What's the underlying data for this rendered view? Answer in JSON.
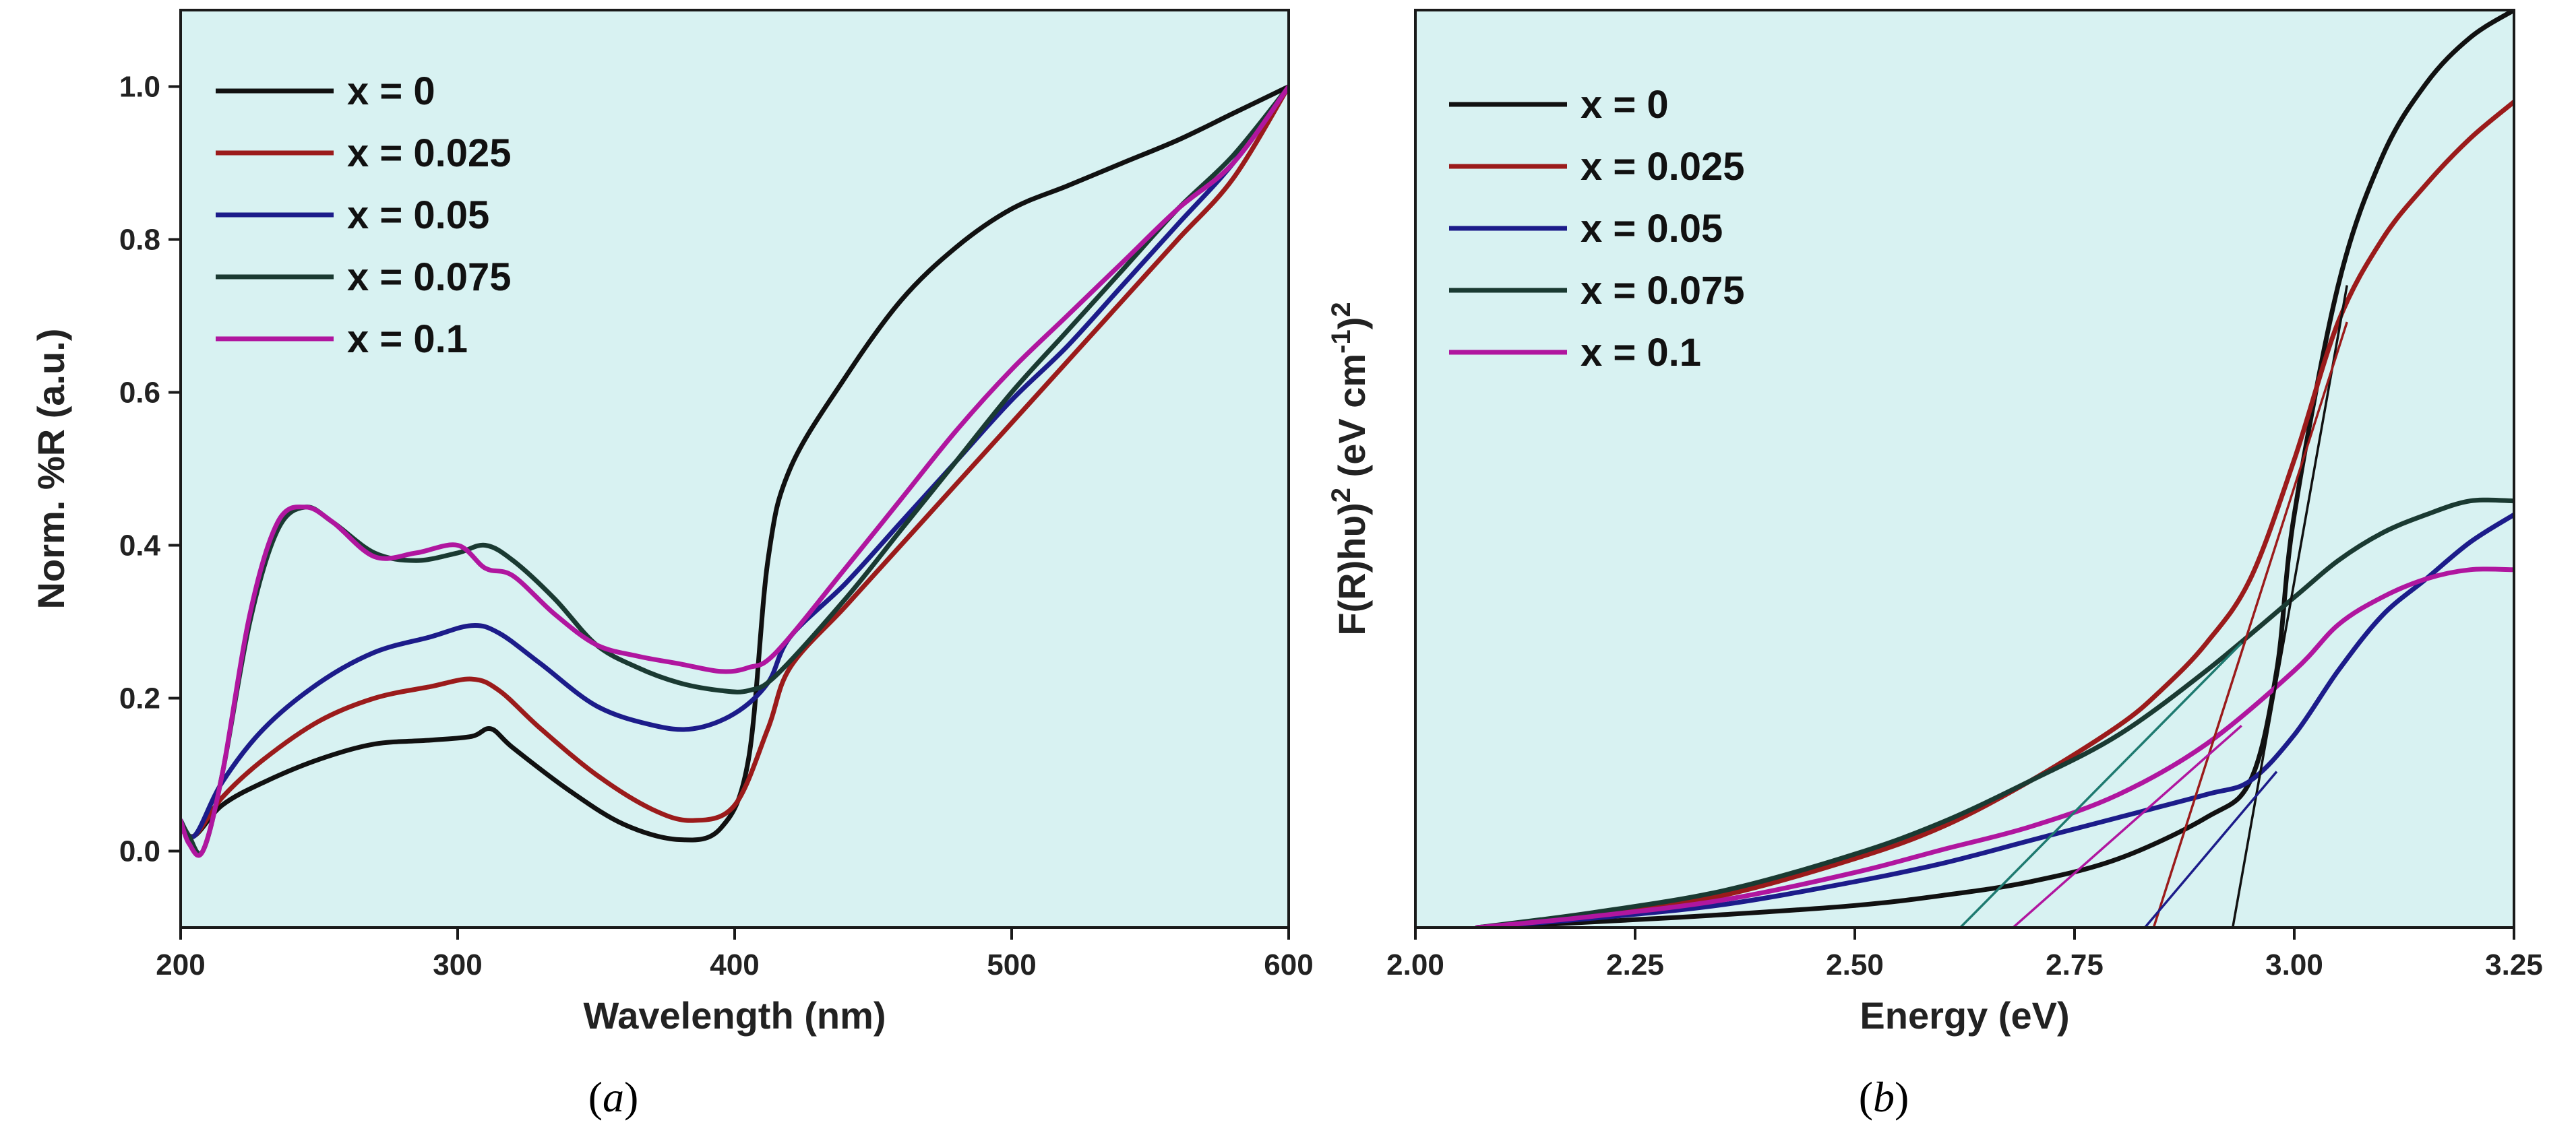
{
  "chart_data": [
    {
      "id": "a",
      "type": "line",
      "panel_label": "(a)",
      "panel_letter": "a",
      "xlabel": "Wavelength (nm)",
      "ylabel": "Norm. %R (a.u.)",
      "xlim": [
        200,
        600
      ],
      "ylim": [
        -0.1,
        1.1
      ],
      "xticks": [
        200,
        300,
        400,
        500,
        600
      ],
      "xtick_labels": [
        "200",
        "300",
        "400",
        "500",
        "600"
      ],
      "yticks": [
        0.0,
        0.2,
        0.4,
        0.6,
        0.8,
        1.0
      ],
      "ytick_labels": [
        "0.0",
        "0.2",
        "0.4",
        "0.6",
        "0.8",
        "1.0"
      ],
      "legend_position": "top-left",
      "series": [
        {
          "name": "x = 0",
          "color": "#111111",
          "x": [
            200,
            205,
            215,
            230,
            250,
            270,
            290,
            305,
            312,
            320,
            340,
            360,
            380,
            395,
            405,
            412,
            420,
            440,
            460,
            480,
            500,
            520,
            540,
            560,
            580,
            600
          ],
          "y": [
            0.03,
            0.02,
            0.06,
            0.09,
            0.12,
            0.14,
            0.145,
            0.15,
            0.16,
            0.135,
            0.08,
            0.035,
            0.015,
            0.03,
            0.12,
            0.38,
            0.5,
            0.62,
            0.72,
            0.79,
            0.84,
            0.87,
            0.9,
            0.93,
            0.965,
            1.0
          ]
        },
        {
          "name": "x = 0.025",
          "color": "#9b1b1b",
          "x": [
            200,
            205,
            215,
            230,
            250,
            270,
            290,
            305,
            315,
            330,
            350,
            370,
            385,
            400,
            412,
            420,
            440,
            460,
            480,
            500,
            520,
            540,
            560,
            580,
            600
          ],
          "y": [
            0.03,
            0.02,
            0.07,
            0.12,
            0.17,
            0.2,
            0.215,
            0.225,
            0.21,
            0.16,
            0.1,
            0.055,
            0.04,
            0.06,
            0.16,
            0.24,
            0.32,
            0.4,
            0.48,
            0.56,
            0.64,
            0.72,
            0.8,
            0.88,
            1.0
          ]
        },
        {
          "name": "x = 0.05",
          "color": "#1c1c8a",
          "x": [
            200,
            205,
            215,
            230,
            250,
            270,
            290,
            305,
            315,
            330,
            350,
            370,
            385,
            400,
            412,
            420,
            440,
            460,
            480,
            500,
            520,
            540,
            560,
            580,
            600
          ],
          "y": [
            0.04,
            0.02,
            0.09,
            0.16,
            0.22,
            0.26,
            0.28,
            0.295,
            0.285,
            0.245,
            0.19,
            0.165,
            0.16,
            0.18,
            0.22,
            0.28,
            0.35,
            0.43,
            0.51,
            0.59,
            0.66,
            0.74,
            0.82,
            0.9,
            1.0
          ]
        },
        {
          "name": "x = 0.075",
          "color": "#1a3a32",
          "x": [
            200,
            203,
            208,
            215,
            225,
            235,
            245,
            255,
            270,
            285,
            300,
            310,
            320,
            335,
            350,
            365,
            380,
            395,
            405,
            415,
            440,
            460,
            480,
            500,
            520,
            540,
            560,
            580,
            600
          ],
          "y": [
            0.04,
            0.02,
            0.0,
            0.1,
            0.3,
            0.42,
            0.45,
            0.43,
            0.39,
            0.38,
            0.39,
            0.4,
            0.38,
            0.33,
            0.27,
            0.24,
            0.22,
            0.21,
            0.21,
            0.23,
            0.33,
            0.42,
            0.51,
            0.6,
            0.68,
            0.76,
            0.84,
            0.91,
            1.0
          ]
        },
        {
          "name": "x = 0.1",
          "color": "#b0169f",
          "x": [
            200,
            203,
            208,
            215,
            225,
            235,
            245,
            255,
            270,
            285,
            300,
            310,
            320,
            335,
            350,
            365,
            380,
            395,
            405,
            415,
            440,
            460,
            480,
            500,
            520,
            540,
            560,
            580,
            600
          ],
          "y": [
            0.04,
            0.01,
            0.0,
            0.1,
            0.31,
            0.43,
            0.45,
            0.43,
            0.385,
            0.39,
            0.4,
            0.37,
            0.36,
            0.31,
            0.27,
            0.255,
            0.245,
            0.235,
            0.24,
            0.26,
            0.37,
            0.46,
            0.55,
            0.63,
            0.7,
            0.77,
            0.84,
            0.9,
            1.0
          ]
        }
      ]
    },
    {
      "id": "b",
      "type": "line",
      "panel_label": "(b)",
      "panel_letter": "b",
      "xlabel": "Energy (eV)",
      "ylabel": "F(R)hυ)² (eV cm⁻¹)²",
      "ylabel_parts": {
        "main": "F(R)hυ)",
        "sup1": "2",
        "unit": " (eV cm",
        "sup2": "-1",
        "close": ")",
        "sup3": "2"
      },
      "xlim": [
        2.0,
        3.25
      ],
      "ylim": [
        0,
        1.0
      ],
      "xticks": [
        2.0,
        2.25,
        2.5,
        2.75,
        3.0,
        3.25
      ],
      "xtick_labels": [
        "2.00",
        "2.25",
        "2.50",
        "2.75",
        "3.00",
        "3.25"
      ],
      "legend_position": "top-left",
      "series": [
        {
          "name": "x = 0",
          "color": "#111111",
          "x": [
            2.07,
            2.2,
            2.35,
            2.5,
            2.6,
            2.7,
            2.8,
            2.9,
            2.95,
            2.98,
            3.0,
            3.05,
            3.1,
            3.15,
            3.2,
            3.25
          ],
          "y": [
            0.0,
            0.006,
            0.014,
            0.024,
            0.035,
            0.05,
            0.075,
            0.12,
            0.16,
            0.28,
            0.45,
            0.7,
            0.84,
            0.92,
            0.97,
            1.0
          ]
        },
        {
          "name": "x = 0.025",
          "color": "#9b1b1b",
          "x": [
            2.07,
            2.2,
            2.35,
            2.5,
            2.6,
            2.7,
            2.8,
            2.85,
            2.9,
            2.95,
            3.0,
            3.05,
            3.1,
            3.15,
            3.2,
            3.25
          ],
          "y": [
            0.0,
            0.012,
            0.035,
            0.075,
            0.11,
            0.16,
            0.22,
            0.26,
            0.31,
            0.38,
            0.51,
            0.66,
            0.75,
            0.81,
            0.86,
            0.9
          ]
        },
        {
          "name": "x = 0.05",
          "color": "#1c1c8a",
          "x": [
            2.07,
            2.2,
            2.35,
            2.5,
            2.6,
            2.7,
            2.8,
            2.9,
            2.95,
            3.0,
            3.05,
            3.1,
            3.15,
            3.2,
            3.25
          ],
          "y": [
            0.0,
            0.01,
            0.025,
            0.05,
            0.07,
            0.095,
            0.12,
            0.145,
            0.16,
            0.21,
            0.28,
            0.34,
            0.38,
            0.42,
            0.45
          ]
        },
        {
          "name": "x = 0.075",
          "color": "#1a3a32",
          "x": [
            2.07,
            2.2,
            2.35,
            2.5,
            2.6,
            2.7,
            2.8,
            2.9,
            3.0,
            3.05,
            3.1,
            3.15,
            3.2,
            3.25
          ],
          "y": [
            0.0,
            0.016,
            0.04,
            0.08,
            0.115,
            0.16,
            0.21,
            0.28,
            0.36,
            0.4,
            0.43,
            0.45,
            0.465,
            0.465
          ]
        },
        {
          "name": "x = 0.1",
          "color": "#b0169f",
          "x": [
            2.07,
            2.2,
            2.35,
            2.5,
            2.6,
            2.7,
            2.8,
            2.9,
            3.0,
            3.05,
            3.1,
            3.15,
            3.2,
            3.25
          ],
          "y": [
            0.0,
            0.012,
            0.03,
            0.06,
            0.085,
            0.11,
            0.145,
            0.2,
            0.28,
            0.33,
            0.36,
            0.38,
            0.39,
            0.39
          ]
        }
      ],
      "tangent_lines": [
        {
          "name": "tangent x = 0",
          "color": "#111111",
          "x": [
            2.93,
            3.06
          ],
          "y": [
            0.0,
            0.7
          ]
        },
        {
          "name": "tangent x = 0.025",
          "color": "#9b1b1b",
          "x": [
            2.84,
            3.06
          ],
          "y": [
            0.0,
            0.66
          ]
        },
        {
          "name": "tangent x = 0.05",
          "color": "#1c1c8a",
          "x": [
            2.83,
            2.98
          ],
          "y": [
            0.0,
            0.17
          ]
        },
        {
          "name": "tangent x = 0.075",
          "color": "#1e7a70",
          "x": [
            2.62,
            2.94
          ],
          "y": [
            0.0,
            0.31
          ]
        },
        {
          "name": "tangent x = 0.1",
          "color": "#b0169f",
          "x": [
            2.68,
            2.94
          ],
          "y": [
            0.0,
            0.22
          ]
        }
      ]
    }
  ],
  "colors": {
    "plot_background": "#d8f2f2",
    "axis": "#1a1a1a"
  }
}
